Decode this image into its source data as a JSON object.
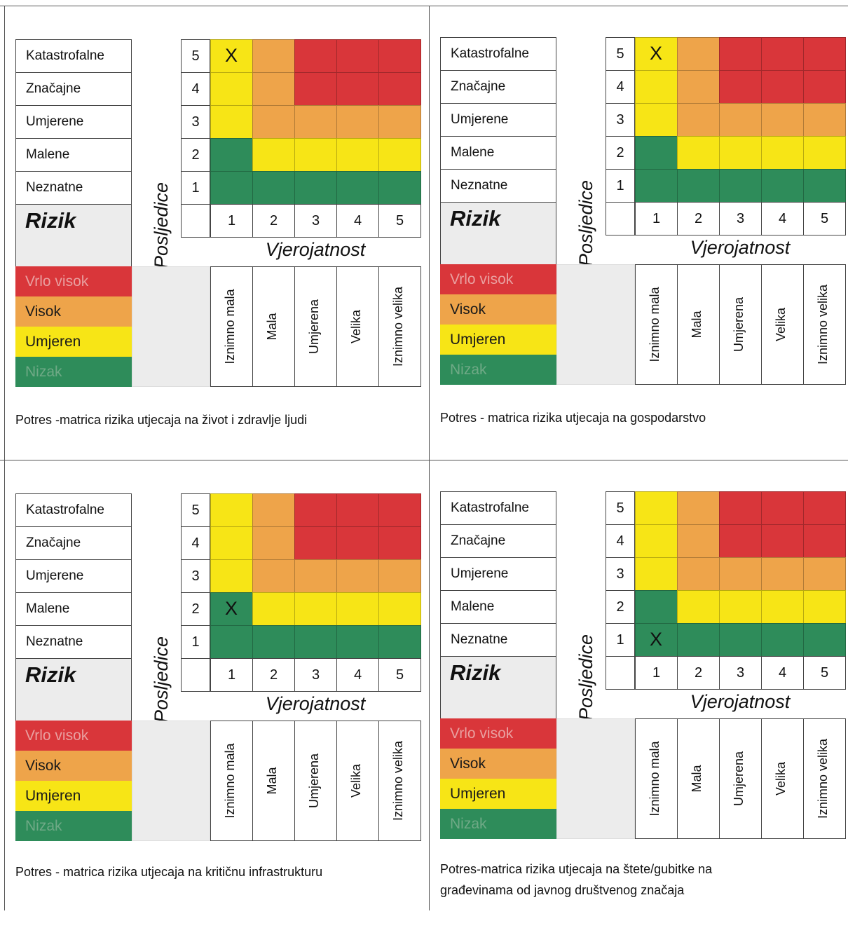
{
  "consequence_labels": [
    "Katastrofalne",
    "Značajne",
    "Umjerene",
    "Malene",
    "Neznatne"
  ],
  "consequence_axis_label": "Posljedice",
  "probability_axis_label": "Vjerojatnost",
  "risk_label": "Rizik",
  "row_numbers": [
    "5",
    "4",
    "3",
    "2",
    "1"
  ],
  "col_numbers": [
    "1",
    "2",
    "3",
    "4",
    "5"
  ],
  "probability_labels": [
    "Iznimno mala",
    "Mala",
    "Umjerena",
    "Velika",
    "Iznimno velika"
  ],
  "legend": [
    {
      "label": "Vrlo visok",
      "color": "#d9363a",
      "text_color": "#e9a0a0"
    },
    {
      "label": "Visok",
      "color": "#eea44a",
      "text_color": "#1a1a1a"
    },
    {
      "label": "Umjeren",
      "color": "#f7e516",
      "text_color": "#1a1a1a"
    },
    {
      "label": "Nizak",
      "color": "#2e8c5a",
      "text_color": "#6fa986"
    }
  ],
  "colors": {
    "R": "#d9363a",
    "O": "#eea44a",
    "Y": "#f7e516",
    "G": "#2e8c5a"
  },
  "matrix_rows_top_to_bottom": [
    [
      "Y",
      "O",
      "R",
      "R",
      "R"
    ],
    [
      "Y",
      "O",
      "R",
      "R",
      "R"
    ],
    [
      "Y",
      "O",
      "O",
      "O",
      "O"
    ],
    [
      "G",
      "Y",
      "Y",
      "Y",
      "Y"
    ],
    [
      "G",
      "G",
      "G",
      "G",
      "G"
    ]
  ],
  "mark_symbol": "X",
  "panels": [
    {
      "caption_lines": [
        "Potres -matrica rizika utjecaja na život i zdravlje ljudi"
      ],
      "mark": {
        "consequence": 5,
        "probability": 1
      }
    },
    {
      "caption_lines": [
        "Potres - matrica rizika utjecaja na gospodarstvo"
      ],
      "mark": {
        "consequence": 5,
        "probability": 1
      }
    },
    {
      "caption_lines": [
        "Potres - matrica rizika utjecaja na kritičnu infrastrukturu"
      ],
      "mark": {
        "consequence": 2,
        "probability": 1
      }
    },
    {
      "caption_lines": [
        "Potres-matrica rizika utjecaja na štete/gubitke na",
        "građevinama od javnog društvenog značaja"
      ],
      "mark": {
        "consequence": 1,
        "probability": 1
      }
    }
  ]
}
